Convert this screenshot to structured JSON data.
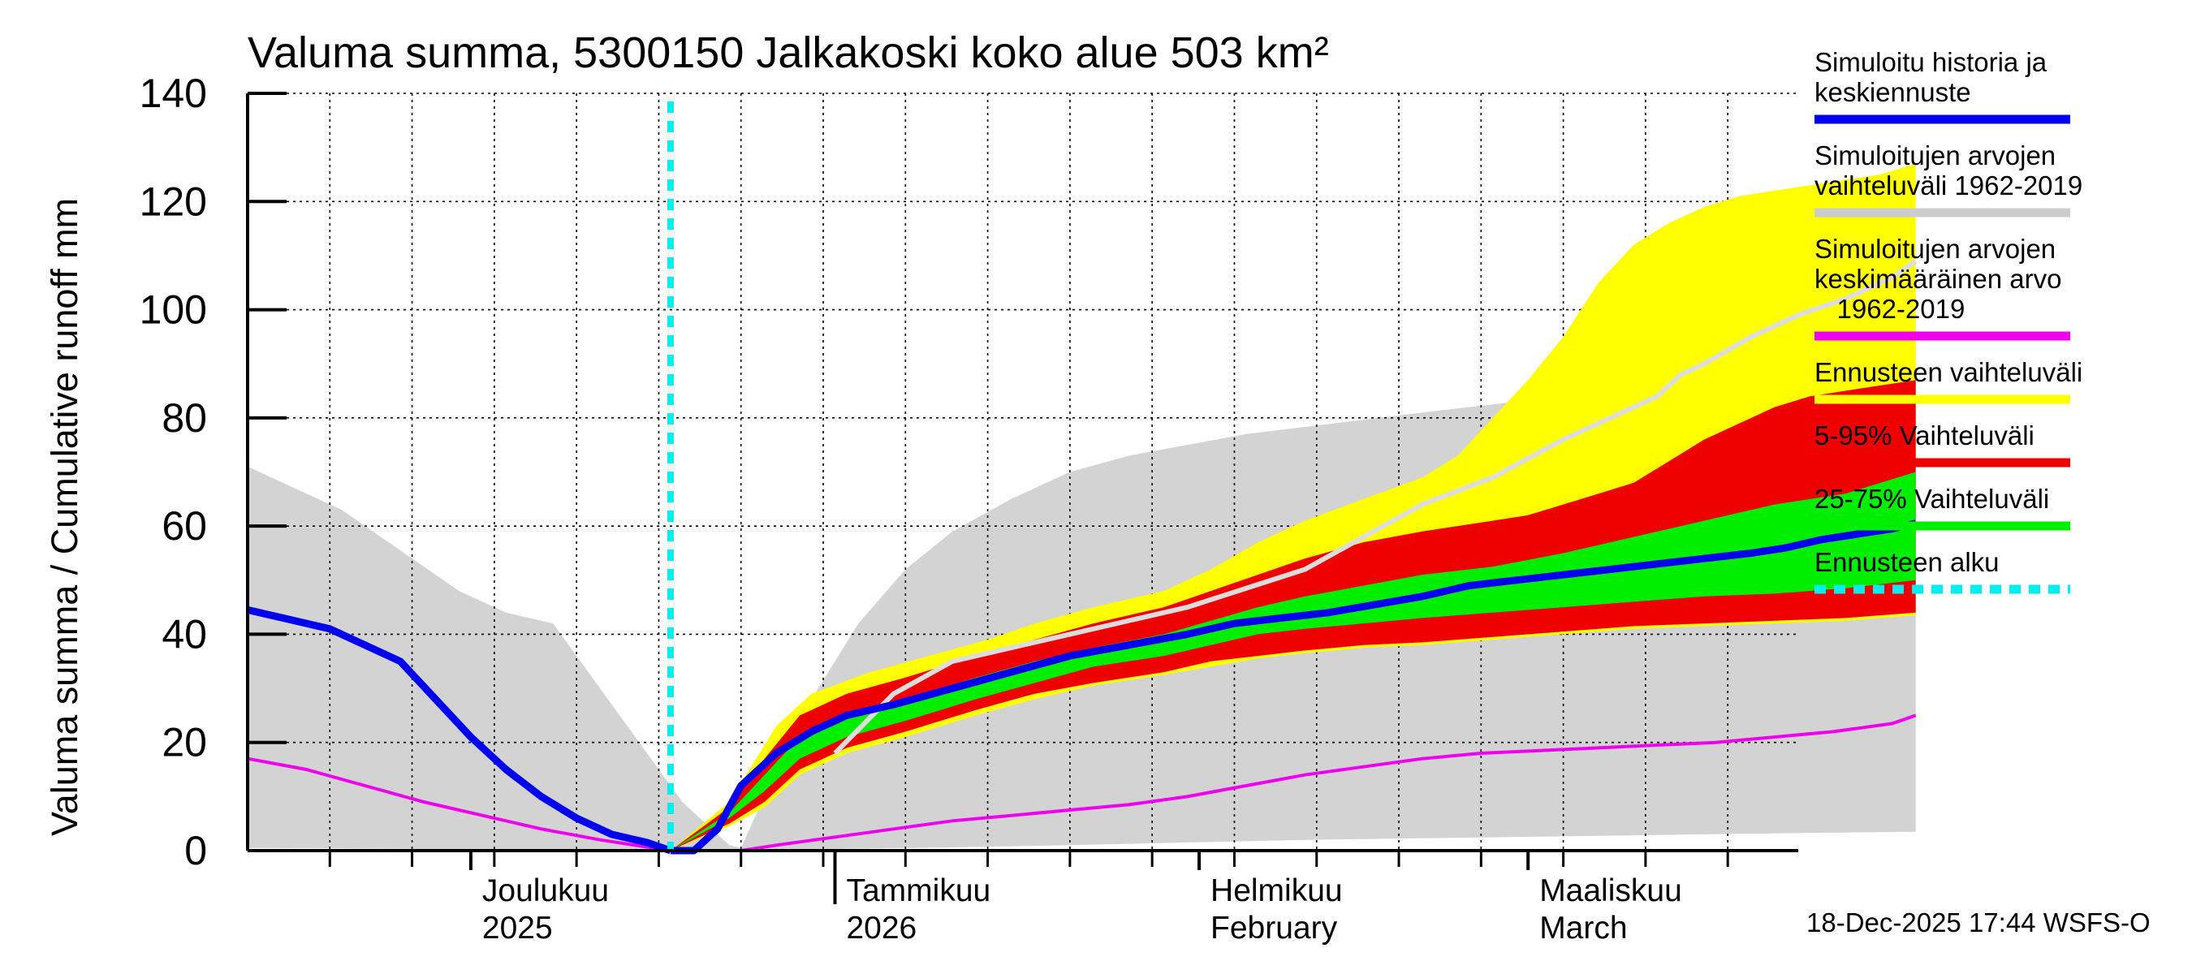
{
  "chart_data": {
    "type": "area",
    "title": "Valuma summa, 5300150 Jalkakoski koko alue 503 km²",
    "ylabel": "Valuma summa / Cumulative runoff    mm",
    "ylim": [
      0,
      140
    ],
    "yticks": [
      0,
      20,
      40,
      60,
      80,
      100,
      120,
      140
    ],
    "xlim": [
      "2025-11-12",
      "2026-03-24"
    ],
    "forecast_start": "2025-12-18",
    "month_labels": [
      {
        "line1": "Joulukuu",
        "line2": "2025",
        "date": "2025-12-01"
      },
      {
        "line1": "Tammikuu",
        "line2": "2026",
        "date": "2026-01-01"
      },
      {
        "line1": "Helmikuu",
        "line2": "February",
        "date": "2026-02-01"
      },
      {
        "line1": "Maaliskuu",
        "line2": "March",
        "date": "2026-03-01"
      }
    ],
    "timestamp": "18-Dec-2025 17:44 WSFS-O",
    "legend": [
      {
        "label": "Simuloitu historia ja\nkeskiennuste",
        "color": "#0000ee",
        "style": "solid"
      },
      {
        "label": "Simuloitujen arvojen\nvaihteluväli 1962-2019",
        "color": "#cccccc",
        "style": "solid"
      },
      {
        "label": "Simuloitujen arvojen\nkeskimääräinen arvo\n   1962-2019",
        "color": "#ee00ee",
        "style": "solid"
      },
      {
        "label": "Ennusteen vaihteluväli",
        "color": "#ffff00",
        "style": "solid"
      },
      {
        "label": "5-95% Vaihteluväli",
        "color": "#ee0000",
        "style": "solid"
      },
      {
        "label": "25-75% Vaihteluväli",
        "color": "#00ee00",
        "style": "solid"
      },
      {
        "label": "Ennusteen alku",
        "color": "#00eeee",
        "style": "dashed"
      }
    ],
    "series": [
      {
        "name": "hist_upper",
        "points": [
          [
            0,
            71
          ],
          [
            8,
            63
          ],
          [
            14,
            54
          ],
          [
            18,
            48
          ],
          [
            22,
            44
          ],
          [
            26,
            42
          ],
          [
            28,
            36
          ],
          [
            31,
            27
          ],
          [
            34,
            18
          ],
          [
            37,
            9
          ],
          [
            40,
            3
          ],
          [
            41,
            1
          ],
          [
            42,
            0.5
          ],
          [
            45,
            15
          ],
          [
            48,
            28
          ],
          [
            50,
            35
          ],
          [
            52,
            42
          ],
          [
            56,
            52
          ],
          [
            60,
            59
          ],
          [
            65,
            65
          ],
          [
            70,
            70
          ],
          [
            75,
            73
          ],
          [
            85,
            77
          ],
          [
            100,
            81
          ],
          [
            112,
            84
          ],
          [
            118,
            86
          ],
          [
            122,
            89
          ],
          [
            128,
            95
          ],
          [
            132,
            99
          ],
          [
            136,
            103
          ],
          [
            140,
            106
          ],
          [
            142,
            108
          ]
        ]
      },
      {
        "name": "hist_lower",
        "points": [
          [
            0,
            0.5
          ],
          [
            41,
            0
          ],
          [
            42,
            0
          ],
          [
            50,
            0.3
          ],
          [
            60,
            0.6
          ],
          [
            70,
            1.0
          ],
          [
            80,
            1.5
          ],
          [
            90,
            2.0
          ],
          [
            100,
            2.3
          ],
          [
            110,
            2.6
          ],
          [
            120,
            2.9
          ],
          [
            130,
            3.2
          ],
          [
            142,
            3.5
          ]
        ]
      },
      {
        "name": "hist_mean",
        "points": [
          [
            0,
            69
          ],
          [
            41,
            0
          ],
          [
            42,
            0
          ],
          [
            50,
            18
          ],
          [
            55,
            29
          ],
          [
            60,
            35
          ],
          [
            70,
            40
          ],
          [
            80,
            45
          ],
          [
            90,
            52
          ],
          [
            100,
            64
          ],
          [
            106,
            69
          ],
          [
            112,
            76
          ],
          [
            116,
            80
          ],
          [
            120,
            84
          ],
          [
            122,
            88
          ],
          [
            124,
            90
          ],
          [
            128,
            95
          ],
          [
            132,
            99
          ],
          [
            136,
            102
          ],
          [
            140,
            106
          ],
          [
            142,
            109
          ]
        ]
      },
      {
        "name": "mean_magenta",
        "points": [
          [
            0,
            17
          ],
          [
            5,
            15
          ],
          [
            10,
            12
          ],
          [
            15,
            9
          ],
          [
            20,
            6.5
          ],
          [
            25,
            4
          ],
          [
            30,
            2
          ],
          [
            36,
            0
          ],
          [
            42,
            0
          ],
          [
            45,
            1
          ],
          [
            50,
            2.5
          ],
          [
            55,
            4
          ],
          [
            60,
            5.5
          ],
          [
            65,
            6.5
          ],
          [
            70,
            7.5
          ],
          [
            75,
            8.5
          ],
          [
            80,
            10
          ],
          [
            85,
            12
          ],
          [
            90,
            14
          ],
          [
            95,
            15.5
          ],
          [
            100,
            17
          ],
          [
            105,
            18
          ],
          [
            110,
            18.5
          ],
          [
            115,
            19
          ],
          [
            120,
            19.5
          ],
          [
            125,
            20
          ],
          [
            130,
            21
          ],
          [
            135,
            22
          ],
          [
            140,
            23.5
          ],
          [
            142,
            25
          ]
        ]
      },
      {
        "name": "forecast_max",
        "points": [
          [
            36,
            0
          ],
          [
            41,
            9
          ],
          [
            45,
            23
          ],
          [
            48,
            29
          ],
          [
            53,
            33
          ],
          [
            58,
            36
          ],
          [
            63,
            39
          ],
          [
            67,
            42
          ],
          [
            72,
            45
          ],
          [
            78,
            48
          ],
          [
            82,
            52
          ],
          [
            86,
            57
          ],
          [
            90,
            61
          ],
          [
            95,
            65
          ],
          [
            100,
            69
          ],
          [
            103,
            73
          ],
          [
            106,
            80
          ],
          [
            109,
            87
          ],
          [
            112,
            95
          ],
          [
            115,
            105
          ],
          [
            118,
            112
          ],
          [
            121,
            116
          ],
          [
            124,
            119
          ],
          [
            127,
            121
          ],
          [
            130,
            122
          ],
          [
            133,
            123
          ],
          [
            136,
            124
          ],
          [
            139,
            125
          ],
          [
            142,
            127
          ]
        ]
      },
      {
        "name": "q95",
        "points": [
          [
            36,
            0
          ],
          [
            41,
            8
          ],
          [
            44,
            17
          ],
          [
            47,
            25
          ],
          [
            51,
            29
          ],
          [
            56,
            32
          ],
          [
            62,
            36
          ],
          [
            67,
            39
          ],
          [
            72,
            42
          ],
          [
            78,
            45
          ],
          [
            82,
            48
          ],
          [
            86,
            51
          ],
          [
            90,
            54
          ],
          [
            95,
            57
          ],
          [
            100,
            59
          ],
          [
            103,
            60
          ],
          [
            106,
            61
          ],
          [
            109,
            62
          ],
          [
            112,
            64
          ],
          [
            115,
            66
          ],
          [
            118,
            68
          ],
          [
            121,
            72
          ],
          [
            124,
            76
          ],
          [
            127,
            79
          ],
          [
            130,
            82
          ],
          [
            133,
            84
          ],
          [
            136,
            85
          ],
          [
            139,
            86
          ],
          [
            142,
            87
          ]
        ]
      },
      {
        "name": "q75",
        "points": [
          [
            36,
            0
          ],
          [
            41,
            7
          ],
          [
            44,
            14
          ],
          [
            47,
            21
          ],
          [
            51,
            25
          ],
          [
            56,
            28
          ],
          [
            62,
            32
          ],
          [
            67,
            35
          ],
          [
            72,
            37.5
          ],
          [
            78,
            40
          ],
          [
            82,
            42.5
          ],
          [
            86,
            45
          ],
          [
            90,
            47
          ],
          [
            95,
            49
          ],
          [
            100,
            51
          ],
          [
            106,
            52.5
          ],
          [
            112,
            55
          ],
          [
            118,
            58
          ],
          [
            124,
            61
          ],
          [
            130,
            64
          ],
          [
            136,
            66
          ],
          [
            142,
            70
          ]
        ]
      },
      {
        "name": "median",
        "points": [
          [
            36,
            0
          ],
          [
            38,
            0
          ],
          [
            40,
            4
          ],
          [
            42,
            12
          ],
          [
            45,
            18
          ],
          [
            48,
            22
          ],
          [
            51,
            25
          ],
          [
            55,
            27
          ],
          [
            60,
            30
          ],
          [
            65,
            33
          ],
          [
            70,
            36
          ],
          [
            75,
            38
          ],
          [
            80,
            40
          ],
          [
            84,
            42
          ],
          [
            88,
            43
          ],
          [
            92,
            44
          ],
          [
            96,
            45.5
          ],
          [
            100,
            47
          ],
          [
            104,
            49
          ],
          [
            108,
            50
          ],
          [
            112,
            51
          ],
          [
            116,
            52
          ],
          [
            120,
            53
          ],
          [
            124,
            54
          ],
          [
            128,
            55
          ],
          [
            131,
            56
          ],
          [
            134,
            57.5
          ],
          [
            137,
            58.5
          ],
          [
            140,
            59.5
          ],
          [
            142,
            60.5
          ]
        ]
      },
      {
        "name": "q25",
        "points": [
          [
            36,
            0
          ],
          [
            41,
            6
          ],
          [
            44,
            11
          ],
          [
            47,
            17
          ],
          [
            51,
            21
          ],
          [
            56,
            24
          ],
          [
            62,
            28
          ],
          [
            67,
            31
          ],
          [
            72,
            34
          ],
          [
            78,
            36
          ],
          [
            82,
            38
          ],
          [
            86,
            40
          ],
          [
            90,
            41
          ],
          [
            95,
            42
          ],
          [
            100,
            43
          ],
          [
            106,
            44
          ],
          [
            112,
            45
          ],
          [
            118,
            46
          ],
          [
            124,
            47
          ],
          [
            130,
            47.5
          ],
          [
            136,
            48.5
          ],
          [
            142,
            50
          ]
        ]
      },
      {
        "name": "q05",
        "points": [
          [
            36,
            0
          ],
          [
            41,
            5
          ],
          [
            44,
            9
          ],
          [
            47,
            15
          ],
          [
            51,
            19
          ],
          [
            56,
            22
          ],
          [
            62,
            26
          ],
          [
            67,
            29
          ],
          [
            72,
            31
          ],
          [
            78,
            33
          ],
          [
            82,
            35
          ],
          [
            86,
            36
          ],
          [
            90,
            37
          ],
          [
            95,
            38
          ],
          [
            100,
            38.5
          ],
          [
            106,
            39.5
          ],
          [
            112,
            40.5
          ],
          [
            118,
            41.5
          ],
          [
            124,
            42
          ],
          [
            130,
            42.5
          ],
          [
            136,
            43
          ],
          [
            142,
            44
          ]
        ]
      },
      {
        "name": "forecast_min",
        "points": [
          [
            36,
            0
          ],
          [
            41,
            4.5
          ],
          [
            44,
            8
          ],
          [
            47,
            14
          ],
          [
            51,
            18
          ],
          [
            56,
            21
          ],
          [
            62,
            25
          ],
          [
            67,
            28
          ],
          [
            72,
            30.5
          ],
          [
            78,
            32.5
          ],
          [
            82,
            34
          ],
          [
            86,
            35.5
          ],
          [
            90,
            36.5
          ],
          [
            95,
            37.5
          ],
          [
            100,
            38
          ],
          [
            106,
            39
          ],
          [
            112,
            40
          ],
          [
            118,
            41
          ],
          [
            124,
            41.5
          ],
          [
            130,
            42
          ],
          [
            136,
            42.5
          ],
          [
            142,
            43.5
          ]
        ]
      },
      {
        "name": "blue_history",
        "points": [
          [
            0,
            44.5
          ],
          [
            3,
            43
          ],
          [
            7,
            41
          ],
          [
            10,
            38
          ],
          [
            13,
            35
          ],
          [
            16,
            28
          ],
          [
            19,
            21
          ],
          [
            22,
            15
          ],
          [
            25,
            10
          ],
          [
            28,
            6
          ],
          [
            31,
            3
          ],
          [
            34,
            1.5
          ],
          [
            36,
            0
          ]
        ]
      }
    ]
  }
}
